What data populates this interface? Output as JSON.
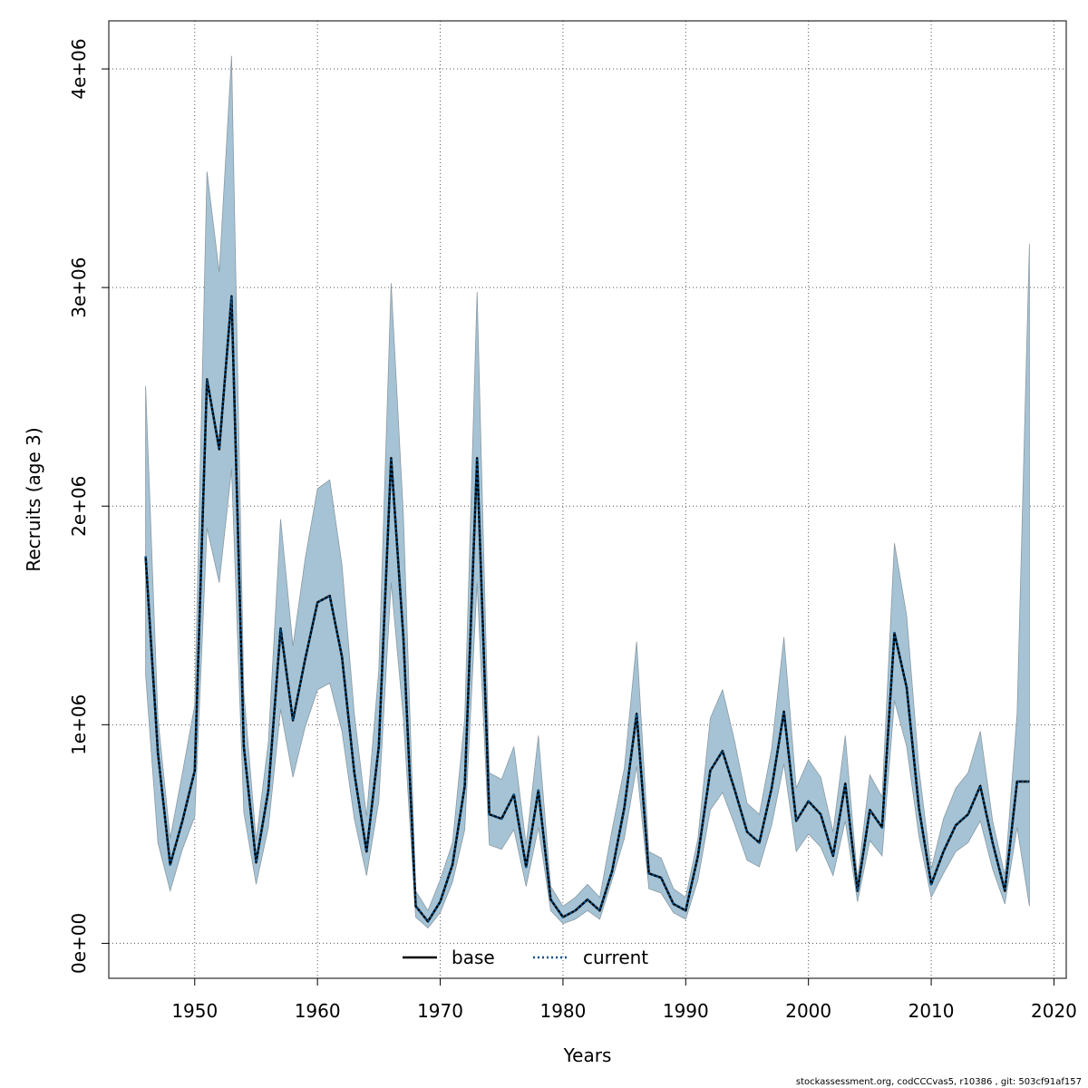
{
  "chart_data": {
    "type": "line",
    "xlabel": "Years",
    "ylabel": "Recruits (age 3)",
    "xlim": [
      1943,
      2021
    ],
    "ylim": [
      -160000,
      4220000
    ],
    "x_ticks": [
      1950,
      1960,
      1970,
      1980,
      1990,
      2000,
      2010,
      2020
    ],
    "x_tick_labels": [
      "1950",
      "1960",
      "1970",
      "1980",
      "1990",
      "2000",
      "2010",
      "2020"
    ],
    "y_ticks": [
      0,
      1000000,
      2000000,
      3000000,
      4000000
    ],
    "y_tick_labels": [
      "0e+00",
      "1e+06",
      "2e+06",
      "3e+06",
      "4e+06"
    ],
    "grid": true,
    "legend_position": "bottom",
    "colors": {
      "band_fill": "#a5c3d4",
      "band_edge": "#8a9aa4",
      "base": "#000000",
      "current": "#00508a",
      "grid": "#555555"
    },
    "x": [
      1946,
      1947,
      1948,
      1949,
      1950,
      1951,
      1952,
      1953,
      1954,
      1955,
      1956,
      1957,
      1958,
      1959,
      1960,
      1961,
      1962,
      1963,
      1964,
      1965,
      1966,
      1967,
      1968,
      1969,
      1970,
      1971,
      1972,
      1973,
      1974,
      1975,
      1976,
      1977,
      1978,
      1979,
      1980,
      1981,
      1982,
      1983,
      1984,
      1985,
      1986,
      1987,
      1988,
      1989,
      1990,
      1991,
      1992,
      1993,
      1994,
      1995,
      1996,
      1997,
      1998,
      1999,
      2000,
      2001,
      2002,
      2003,
      2004,
      2005,
      2006,
      2007,
      2008,
      2009,
      2010,
      2011,
      2012,
      2013,
      2014,
      2015,
      2016,
      2017,
      2018
    ],
    "series": [
      {
        "name": "base",
        "style": "solid",
        "values": [
          1770000,
          870000,
          360000,
          560000,
          790000,
          2580000,
          2260000,
          2960000,
          900000,
          370000,
          700000,
          1440000,
          1020000,
          1300000,
          1560000,
          1590000,
          1310000,
          780000,
          420000,
          900000,
          2220000,
          1400000,
          170000,
          100000,
          190000,
          360000,
          720000,
          2220000,
          590000,
          570000,
          680000,
          350000,
          700000,
          200000,
          120000,
          150000,
          200000,
          150000,
          330000,
          620000,
          1050000,
          320000,
          300000,
          180000,
          150000,
          400000,
          790000,
          880000,
          700000,
          510000,
          460000,
          710000,
          1060000,
          560000,
          650000,
          590000,
          400000,
          730000,
          240000,
          610000,
          530000,
          1420000,
          1170000,
          620000,
          270000,
          420000,
          540000,
          590000,
          720000,
          460000,
          240000,
          740000,
          740000
        ]
      },
      {
        "name": "current",
        "style": "dotted",
        "values": [
          1770000,
          870000,
          360000,
          560000,
          790000,
          2580000,
          2260000,
          2960000,
          900000,
          370000,
          700000,
          1440000,
          1020000,
          1300000,
          1560000,
          1590000,
          1310000,
          780000,
          420000,
          900000,
          2220000,
          1400000,
          170000,
          100000,
          190000,
          360000,
          720000,
          2220000,
          590000,
          570000,
          680000,
          350000,
          700000,
          200000,
          120000,
          150000,
          200000,
          150000,
          330000,
          620000,
          1050000,
          320000,
          300000,
          180000,
          150000,
          400000,
          790000,
          880000,
          700000,
          510000,
          460000,
          710000,
          1060000,
          560000,
          650000,
          590000,
          400000,
          730000,
          240000,
          610000,
          530000,
          1420000,
          1170000,
          620000,
          270000,
          420000,
          540000,
          590000,
          720000,
          460000,
          240000,
          740000,
          740000
        ]
      }
    ],
    "band_upper": [
      2550000,
      1030000,
      480000,
      780000,
      1090000,
      3530000,
      3070000,
      4060000,
      1150000,
      470000,
      920000,
      1940000,
      1360000,
      1760000,
      2080000,
      2120000,
      1730000,
      1050000,
      580000,
      1250000,
      3020000,
      1960000,
      240000,
      150000,
      290000,
      460000,
      1030000,
      2980000,
      780000,
      750000,
      900000,
      450000,
      950000,
      260000,
      170000,
      210000,
      270000,
      210000,
      520000,
      800000,
      1380000,
      420000,
      390000,
      250000,
      210000,
      480000,
      1030000,
      1160000,
      920000,
      640000,
      590000,
      890000,
      1400000,
      710000,
      840000,
      760000,
      510000,
      950000,
      290000,
      770000,
      670000,
      1830000,
      1500000,
      800000,
      340000,
      570000,
      710000,
      780000,
      970000,
      560000,
      310000,
      1050000,
      3200000
    ],
    "band_lower": [
      1230000,
      460000,
      240000,
      430000,
      580000,
      1900000,
      1650000,
      2170000,
      600000,
      270000,
      530000,
      1070000,
      760000,
      990000,
      1160000,
      1190000,
      970000,
      570000,
      310000,
      650000,
      1650000,
      1030000,
      120000,
      70000,
      140000,
      280000,
      520000,
      1650000,
      450000,
      430000,
      520000,
      260000,
      530000,
      150000,
      90000,
      110000,
      150000,
      110000,
      290000,
      480000,
      810000,
      250000,
      230000,
      140000,
      110000,
      290000,
      610000,
      690000,
      540000,
      380000,
      350000,
      540000,
      820000,
      420000,
      500000,
      440000,
      310000,
      560000,
      190000,
      470000,
      400000,
      1110000,
      900000,
      490000,
      210000,
      320000,
      420000,
      460000,
      560000,
      340000,
      180000,
      530000,
      170000
    ]
  },
  "footer_text": "stockassessment.org, codCCCvas5, r10386 , git: 503cf91af157"
}
